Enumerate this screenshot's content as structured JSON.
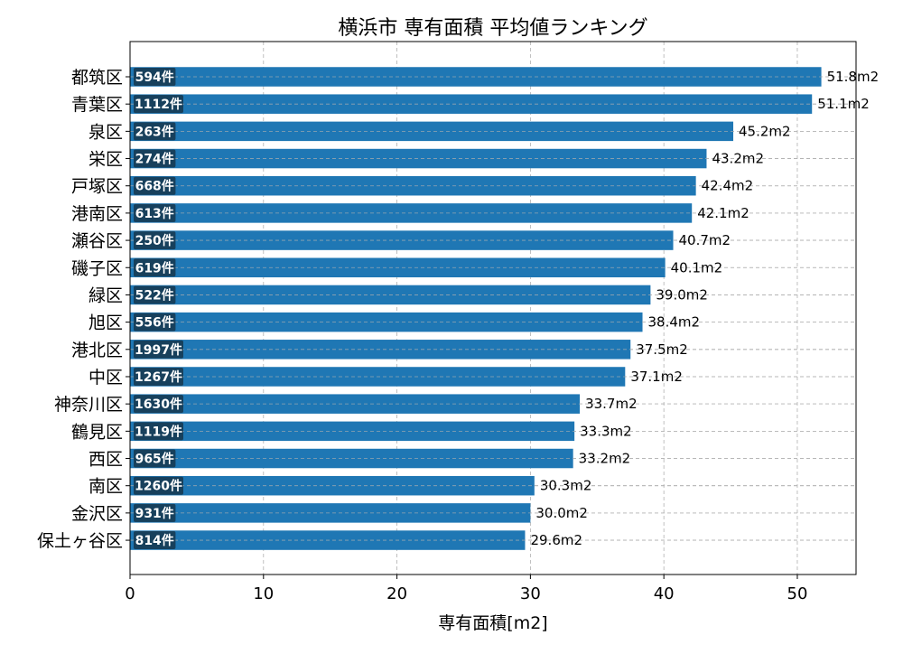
{
  "chart_data": {
    "type": "bar",
    "orientation": "horizontal",
    "title": "横浜市 専有面積 平均値ランキング",
    "xlabel": "専有面積[m2]",
    "ylabel": "",
    "xlim": [
      0,
      54.4
    ],
    "xticks": [
      0,
      10,
      20,
      30,
      40,
      50
    ],
    "grid": true,
    "colors": {
      "bar": "#1f77b4",
      "count_badge": "#163a52",
      "grid": "#b0b0b0",
      "text": "#000000"
    },
    "categories": [
      "都筑区",
      "青葉区",
      "泉区",
      "栄区",
      "戸塚区",
      "港南区",
      "瀬谷区",
      "磯子区",
      "緑区",
      "旭区",
      "港北区",
      "中区",
      "神奈川区",
      "鶴見区",
      "西区",
      "南区",
      "金沢区",
      "保土ヶ谷区"
    ],
    "values": [
      51.8,
      51.1,
      45.2,
      43.2,
      42.4,
      42.1,
      40.7,
      40.1,
      39.0,
      38.4,
      37.5,
      37.1,
      33.7,
      33.3,
      33.2,
      30.3,
      30.0,
      29.6
    ],
    "value_labels": [
      "51.8m2",
      "51.1m2",
      "45.2m2",
      "43.2m2",
      "42.4m2",
      "42.1m2",
      "40.7m2",
      "40.1m2",
      "39.0m2",
      "38.4m2",
      "37.5m2",
      "37.1m2",
      "33.7m2",
      "33.3m2",
      "33.2m2",
      "30.3m2",
      "30.0m2",
      "29.6m2"
    ],
    "counts": [
      "594件",
      "1112件",
      "263件",
      "274件",
      "668件",
      "613件",
      "250件",
      "619件",
      "522件",
      "556件",
      "1997件",
      "1267件",
      "1630件",
      "1119件",
      "965件",
      "1260件",
      "931件",
      "814件"
    ]
  }
}
